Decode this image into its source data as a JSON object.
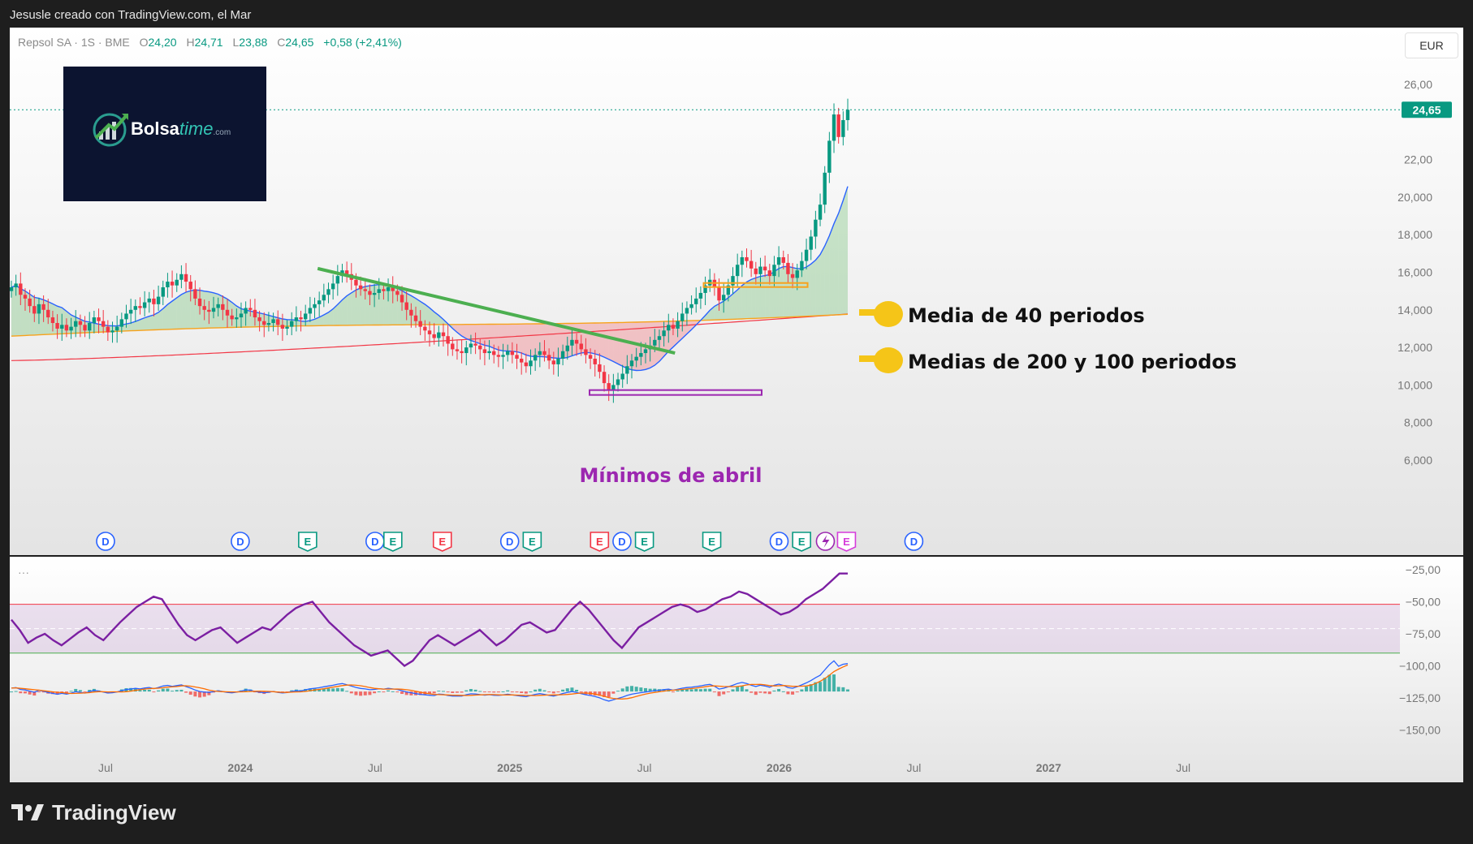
{
  "header": {
    "author_line": "Jesusle creado con TradingView.com, el Mar"
  },
  "legend": {
    "symbol": "Repsol SA · 1S · BME",
    "open_label": "O",
    "open": "24,20",
    "high_label": "H",
    "high": "24,71",
    "low_label": "L",
    "low": "23,88",
    "close_label": "C",
    "close": "24,65",
    "change": "+0,58 (+2,41%)"
  },
  "currency": "EUR",
  "logo": {
    "brand": "Bolsa",
    "brand_accent": "time",
    "suffix": ".com"
  },
  "footer": {
    "brand": "TradingView"
  },
  "colors": {
    "up": "#089981",
    "down": "#f23645",
    "ma40": "#2962ff",
    "ma100": "#f7a21b",
    "ma200": "#f23645",
    "trendline": "#4caf50",
    "rsi": "#7b1fa2",
    "annotation_purple": "#9c27b0"
  },
  "chart_data": [
    {
      "type": "candlestick",
      "price_axis": {
        "ticks": [
          "26,00",
          "22,00",
          "20,000",
          "18,000",
          "16,000",
          "14,000",
          "12,000",
          "10,000",
          "8,000",
          "6,000"
        ],
        "tick_values": [
          26,
          22,
          20,
          18,
          16,
          14,
          12,
          10,
          8,
          6
        ]
      },
      "last_price": {
        "label": "24,65",
        "value": 24.65
      },
      "time_axis": {
        "labels": [
          "Jul",
          "2024",
          "Jul",
          "2025",
          "Jul",
          "2026",
          "Jul",
          "2027",
          "Jul"
        ],
        "dates": [
          "2023-07",
          "2024-01",
          "2024-07",
          "2025-01",
          "2025-07",
          "2026-01",
          "2026-07",
          "2027-01",
          "2027-07"
        ]
      },
      "close_series": [
        15.2,
        15.4,
        14.8,
        14.6,
        14.2,
        13.8,
        14.3,
        14.0,
        13.6,
        13.3,
        13.0,
        13.2,
        12.9,
        13.1,
        13.4,
        13.2,
        12.9,
        13.3,
        13.6,
        13.4,
        13.1,
        12.8,
        12.9,
        13.1,
        13.5,
        13.8,
        14.0,
        14.2,
        14.1,
        14.4,
        14.6,
        14.3,
        14.7,
        15.2,
        15.5,
        15.3,
        15.6,
        15.9,
        15.5,
        15.1,
        14.6,
        14.2,
        14.0,
        13.9,
        14.1,
        14.3,
        14.0,
        13.7,
        13.5,
        13.6,
        13.8,
        14.1,
        14.0,
        13.6,
        13.4,
        13.2,
        13.3,
        13.5,
        13.2,
        13.0,
        13.1,
        13.4,
        13.6,
        13.5,
        13.8,
        14.1,
        14.3,
        14.5,
        14.8,
        15.1,
        15.4,
        15.8,
        16.1,
        15.9,
        15.6,
        15.3,
        15.1,
        15.0,
        14.8,
        14.9,
        15.1,
        15.0,
        15.2,
        15.0,
        14.8,
        14.4,
        14.0,
        13.7,
        13.4,
        13.1,
        12.9,
        12.7,
        12.5,
        12.8,
        12.6,
        12.2,
        11.9,
        11.8,
        11.7,
        12.0,
        12.2,
        12.1,
        11.9,
        11.7,
        11.8,
        11.6,
        11.5,
        11.6,
        11.8,
        11.6,
        11.4,
        11.2,
        11.0,
        11.3,
        11.6,
        11.8,
        11.6,
        11.3,
        11.1,
        11.4,
        11.8,
        12.1,
        12.4,
        12.2,
        11.9,
        11.6,
        11.4,
        11.1,
        10.7,
        10.1,
        9.7,
        10.0,
        10.3,
        10.6,
        11.0,
        11.3,
        11.5,
        11.7,
        11.9,
        12.1,
        12.4,
        12.6,
        12.9,
        13.2,
        13.0,
        13.4,
        13.8,
        14.1,
        14.3,
        14.6,
        14.9,
        15.3,
        15.6,
        15.2,
        14.5,
        14.8,
        15.3,
        15.8,
        16.4,
        16.8,
        16.6,
        16.2,
        15.9,
        16.3,
        16.1,
        15.8,
        16.4,
        16.8,
        16.5,
        15.9,
        15.7,
        16.1,
        16.6,
        17.2,
        17.9,
        18.8,
        19.6,
        21.3,
        23.0,
        24.4,
        23.2,
        24.1,
        24.65
      ],
      "indicators": [
        {
          "label": "Media de 40 periodos",
          "color": "#2962ff"
        },
        {
          "label": "Medias de 200 y 100 periodos",
          "colors": [
            "#f7a21b",
            "#f23645"
          ]
        }
      ],
      "annotations": [
        {
          "label": "Mínimos de abril",
          "value": 9.6,
          "date": "2025-04"
        },
        {
          "label": "trendline",
          "from": {
            "date": "2024-03",
            "value": 16.2
          },
          "to": {
            "date": "2025-08",
            "value": 11.7
          }
        },
        {
          "label": "support",
          "value": 15.3,
          "date_range": [
            "2025-10",
            "2026-02"
          ]
        }
      ],
      "events": [
        {
          "type": "D",
          "date": "2023-07"
        },
        {
          "type": "D",
          "date": "2024-01"
        },
        {
          "type": "E",
          "date": "2024-04"
        },
        {
          "type": "D",
          "date": "2024-07"
        },
        {
          "type": "E",
          "date": "2024-07"
        },
        {
          "type": "E",
          "date": "2024-10"
        },
        {
          "type": "D",
          "date": "2025-01"
        },
        {
          "type": "E",
          "date": "2025-02"
        },
        {
          "type": "E",
          "date": "2025-05"
        },
        {
          "type": "D",
          "date": "2025-06"
        },
        {
          "type": "E",
          "date": "2025-07"
        },
        {
          "type": "E",
          "date": "2025-10"
        },
        {
          "type": "D",
          "date": "2026-01"
        },
        {
          "type": "E",
          "date": "2026-02"
        },
        {
          "type": "E",
          "date": "2026-04"
        },
        {
          "type": "D",
          "date": "2026-07"
        }
      ],
      "event_labels": {
        "D": "D",
        "E": "E"
      }
    },
    {
      "type": "line",
      "name": "oscillator",
      "dots_label": "···",
      "axis_ticks": [
        "−25,00",
        "−50,00",
        "−75,00",
        "−100,00",
        "−125,00",
        "−150,00"
      ],
      "axis_values": [
        -25,
        -50,
        -75,
        -100,
        -125,
        -150
      ],
      "band": [
        -90,
        -52
      ],
      "osc_series": [
        -64,
        -72,
        -82,
        -78,
        -75,
        -80,
        -84,
        -79,
        -74,
        -70,
        -76,
        -80,
        -73,
        -66,
        -60,
        -54,
        -50,
        -46,
        -48,
        -58,
        -68,
        -76,
        -80,
        -76,
        -72,
        -70,
        -76,
        -82,
        -78,
        -74,
        -70,
        -72,
        -66,
        -60,
        -55,
        -52,
        -50,
        -58,
        -66,
        -72,
        -78,
        -84,
        -88,
        -92,
        -90,
        -88,
        -94,
        -100,
        -96,
        -88,
        -80,
        -76,
        -80,
        -84,
        -80,
        -76,
        -72,
        -78,
        -84,
        -80,
        -74,
        -68,
        -66,
        -70,
        -74,
        -72,
        -64,
        -56,
        -50,
        -56,
        -64,
        -72,
        -80,
        -86,
        -78,
        -70,
        -66,
        -62,
        -58,
        -54,
        -52,
        -54,
        -58,
        -56,
        -52,
        -48,
        -46,
        -42,
        -44,
        -48,
        -52,
        -56,
        -60,
        -58,
        -54,
        -48,
        -44,
        -40,
        -34,
        -28,
        -28
      ]
    }
  ]
}
